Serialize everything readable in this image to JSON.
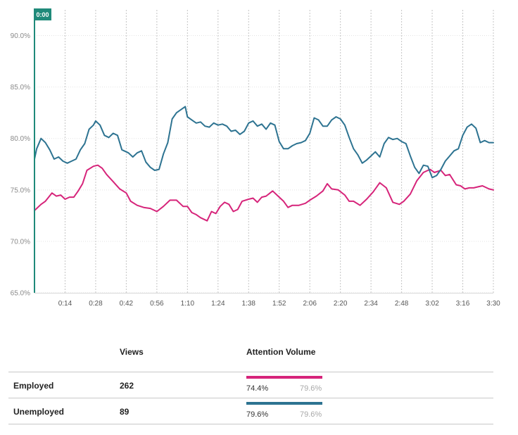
{
  "chart_data": {
    "type": "line",
    "title": "",
    "xlabel": "",
    "ylabel": "",
    "ylim": [
      65,
      92.5
    ],
    "xlim": [
      0,
      210
    ],
    "y_ticks": [
      "65.0%",
      "70.0%",
      "75.0%",
      "80.0%",
      "85.0%",
      "90.0%"
    ],
    "y_tick_values": [
      65,
      70,
      75,
      80,
      85,
      90
    ],
    "x_ticks": [
      "0:14",
      "0:28",
      "0:42",
      "0:56",
      "1:10",
      "1:24",
      "1:38",
      "1:52",
      "2:06",
      "2:20",
      "2:34",
      "2:48",
      "3:02",
      "3:16",
      "3:30"
    ],
    "x_tick_seconds": [
      14,
      28,
      42,
      56,
      70,
      84,
      98,
      112,
      126,
      140,
      154,
      168,
      182,
      196,
      210
    ],
    "grid": true,
    "playhead": {
      "label": "0:00",
      "x": 0
    },
    "series": [
      {
        "name": "Employed",
        "color": "#d6247a",
        "x": [
          0,
          3,
          5,
          8,
          10,
          12,
          14,
          16,
          18,
          20,
          22,
          24,
          27,
          29,
          31,
          33,
          36,
          39,
          42,
          44,
          47,
          50,
          53,
          56,
          59,
          62,
          65,
          68,
          70,
          72,
          74,
          76,
          79,
          81,
          83,
          85,
          87,
          89,
          91,
          93,
          95,
          98,
          100,
          102,
          104,
          106,
          109,
          112,
          114,
          116,
          118,
          121,
          124,
          126,
          129,
          132,
          134,
          136,
          139,
          142,
          144,
          146,
          149,
          152,
          155,
          158,
          161,
          164,
          167,
          169,
          172,
          175,
          178,
          181,
          183,
          186,
          188,
          190,
          193,
          195,
          197,
          199,
          201,
          203,
          205,
          208,
          210
        ],
        "y": [
          73.0,
          73.6,
          73.9,
          74.7,
          74.4,
          74.5,
          74.1,
          74.3,
          74.3,
          74.9,
          75.6,
          76.9,
          77.3,
          77.4,
          77.1,
          76.5,
          75.8,
          75.1,
          74.7,
          73.9,
          73.5,
          73.3,
          73.2,
          72.9,
          73.4,
          74.0,
          74.0,
          73.4,
          73.4,
          72.8,
          72.6,
          72.3,
          72.0,
          72.9,
          72.7,
          73.4,
          73.8,
          73.6,
          72.9,
          73.1,
          73.9,
          74.1,
          74.2,
          73.8,
          74.3,
          74.4,
          74.9,
          74.3,
          73.9,
          73.3,
          73.5,
          73.5,
          73.7,
          74.0,
          74.4,
          74.9,
          75.6,
          75.1,
          75.0,
          74.5,
          73.9,
          73.9,
          73.5,
          74.1,
          74.8,
          75.7,
          75.2,
          73.8,
          73.6,
          73.9,
          74.6,
          75.9,
          76.7,
          77.0,
          76.7,
          76.9,
          76.4,
          76.5,
          75.5,
          75.4,
          75.1,
          75.2,
          75.2,
          75.3,
          75.4,
          75.1,
          75.0
        ]
      },
      {
        "name": "Unemployed",
        "color": "#2d7391",
        "x": [
          0,
          1,
          3,
          5,
          7,
          9,
          11,
          13,
          15,
          17,
          19,
          21,
          23,
          25,
          27,
          28,
          30,
          32,
          34,
          36,
          38,
          40,
          43,
          45,
          47,
          49,
          51,
          53,
          55,
          57,
          59,
          61,
          63,
          65,
          67,
          69,
          70,
          72,
          74,
          76,
          78,
          80,
          82,
          84,
          86,
          88,
          90,
          92,
          94,
          96,
          98,
          100,
          102,
          104,
          106,
          108,
          110,
          112,
          114,
          116,
          118,
          120,
          122,
          124,
          126,
          128,
          130,
          132,
          134,
          136,
          138,
          140,
          142,
          144,
          146,
          148,
          150,
          152,
          154,
          156,
          158,
          160,
          162,
          164,
          166,
          168,
          170,
          172,
          174,
          176,
          178,
          180,
          182,
          184,
          186,
          188,
          190,
          192,
          194,
          196,
          198,
          200,
          202,
          204,
          206,
          208,
          210
        ],
        "y": [
          78.0,
          79.0,
          80.0,
          79.6,
          78.9,
          78.0,
          78.2,
          77.8,
          77.6,
          77.8,
          78.0,
          78.9,
          79.5,
          80.9,
          81.3,
          81.7,
          81.3,
          80.3,
          80.1,
          80.5,
          80.3,
          78.9,
          78.6,
          78.2,
          78.6,
          78.8,
          77.7,
          77.2,
          76.9,
          77.0,
          78.5,
          79.6,
          81.9,
          82.5,
          82.8,
          83.1,
          82.1,
          81.8,
          81.5,
          81.6,
          81.2,
          81.1,
          81.5,
          81.3,
          81.4,
          81.2,
          80.7,
          80.8,
          80.4,
          80.7,
          81.5,
          81.7,
          81.2,
          81.4,
          80.9,
          81.5,
          81.3,
          79.7,
          79.0,
          79.0,
          79.3,
          79.5,
          79.6,
          79.8,
          80.5,
          82.0,
          81.8,
          81.2,
          81.2,
          81.8,
          82.1,
          81.9,
          81.3,
          80.1,
          79.0,
          78.4,
          77.6,
          77.9,
          78.3,
          78.7,
          78.2,
          79.5,
          80.1,
          79.9,
          80.0,
          79.7,
          79.5,
          78.3,
          77.2,
          76.6,
          77.4,
          77.3,
          76.2,
          76.4,
          77.0,
          77.8,
          78.3,
          78.8,
          79.0,
          80.3,
          81.1,
          81.4,
          81.0,
          79.6,
          79.8,
          79.6,
          79.6
        ]
      }
    ]
  },
  "table": {
    "header_views": "Views",
    "header_attention": "Attention Volume",
    "rows": [
      {
        "name": "Employed",
        "views": "262",
        "attention": "74.4%",
        "average": "79.6%",
        "bar_color": "#d6247a"
      },
      {
        "name": "Unemployed",
        "views": "89",
        "attention": "79.6%",
        "average": "79.6%",
        "bar_color": "#2d7391"
      }
    ]
  }
}
